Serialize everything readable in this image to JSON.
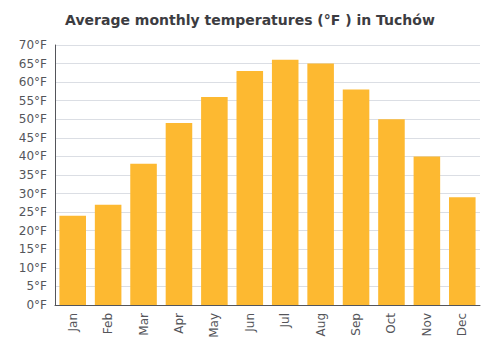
{
  "chart_data": {
    "type": "bar",
    "title": "Average monthly temperatures (°F ) in Tuchów",
    "categories": [
      "Jan",
      "Feb",
      "Mar",
      "Apr",
      "May",
      "Jun",
      "Jul",
      "Aug",
      "Sep",
      "Oct",
      "Nov",
      "Dec"
    ],
    "values": [
      24,
      27,
      38,
      49,
      56,
      63,
      66,
      65,
      58,
      50,
      40,
      29
    ],
    "color": "#FDB931",
    "ylim": [
      0,
      70
    ],
    "yticks": [
      {
        "value": 0,
        "label": "0°F"
      },
      {
        "value": 5,
        "label": "5°F"
      },
      {
        "value": 10,
        "label": "10°F"
      },
      {
        "value": 15,
        "label": "15°F"
      },
      {
        "value": 20,
        "label": "20°F"
      },
      {
        "value": 25,
        "label": "25°F"
      },
      {
        "value": 30,
        "label": "30°F"
      },
      {
        "value": 35,
        "label": "35°F"
      },
      {
        "value": 40,
        "label": "40°F"
      },
      {
        "value": 45,
        "label": "45°F"
      },
      {
        "value": 50,
        "label": "50°F"
      },
      {
        "value": 55,
        "label": "55°F"
      },
      {
        "value": 60,
        "label": "60°F"
      },
      {
        "value": 65,
        "label": "65°F"
      },
      {
        "value": 70,
        "label": "70°F"
      }
    ],
    "grid": true
  }
}
